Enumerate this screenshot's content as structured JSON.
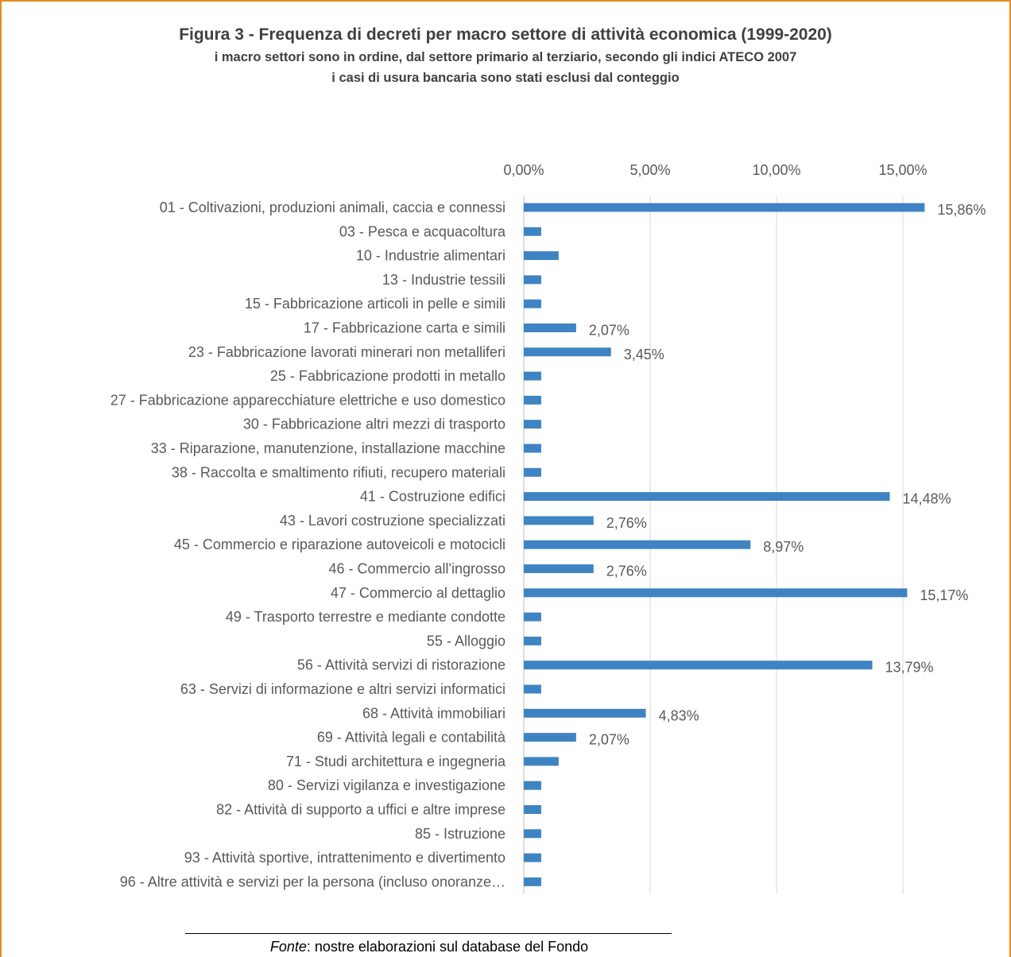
{
  "figure": {
    "title": "Figura 3 - Frequenza di decreti per macro settore di attività economica (1999-2020)",
    "subtitle_lines": [
      "i macro settori sono in ordine, dal settore primario al terziario, secondo gli indici ATECO 2007",
      "i casi di usura bancaria sono stati esclusi dal conteggio"
    ],
    "source_prefix": "Fonte",
    "source_text": ": nostre elaborazioni sul database del Fondo"
  },
  "colors": {
    "bar": "#3f84c2",
    "frame": "#e58a1f",
    "grid": "#d9d9d9",
    "axis": "#bfbfbf"
  },
  "chart_data": {
    "type": "bar",
    "orientation": "horizontal",
    "title": "Figura 3 - Frequenza di decreti per macro settore di attività economica (1999-2020)",
    "xaxis_position": "top",
    "xlim": [
      0,
      15
    ],
    "xticks": [
      "0,00%",
      "5,00%",
      "10,00%",
      "15,00%"
    ],
    "xtick_values": [
      0,
      5,
      10,
      15
    ],
    "grid": "vertical",
    "legend": "none",
    "categories": [
      "01 - Coltivazioni, produzioni animali, caccia e connessi",
      "03 - Pesca e acquacoltura",
      "10 - Industrie alimentari",
      "13 - Industrie tessili",
      "15 - Fabbricazione articoli in pelle e simili",
      "17 - Fabbricazione carta e simili",
      "23 - Fabbricazione lavorati minerari non metalliferi",
      "25 - Fabbricazione prodotti in metallo",
      "27 - Fabbricazione apparecchiature elettriche e uso domestico",
      "30 - Fabbricazione altri mezzi di trasporto",
      "33 - Riparazione, manutenzione, installazione macchine",
      "38 - Raccolta e smaltimento rifiuti, recupero materiali",
      "41 - Costruzione edifici",
      "43 - Lavori costruzione specializzati",
      "45 - Commercio e riparazione autoveicoli e motocicli",
      "46 - Commercio all'ingrosso",
      "47 - Commercio al dettaglio",
      "49 - Trasporto terrestre e mediante condotte",
      "55 - Alloggio",
      "56 - Attività servizi di ristorazione",
      "63 - Servizi di informazione e altri servizi informatici",
      "68 - Attività immobiliari",
      "69 - Attività legali e contabilità",
      "71 - Studi architettura e ingegneria",
      "80 - Servizi vigilanza e investigazione",
      "82 - Attività di supporto a uffici e altre imprese",
      "85 - Istruzione",
      "93 - Attività sportive, intrattenimento e divertimento",
      "96 - Altre attività e servizi per la persona (incluso onoranze…"
    ],
    "values": [
      15.86,
      0.69,
      1.38,
      0.69,
      0.69,
      2.07,
      3.45,
      0.69,
      0.69,
      0.69,
      0.69,
      0.69,
      14.48,
      2.76,
      8.97,
      2.76,
      15.17,
      0.69,
      0.69,
      13.79,
      0.69,
      4.83,
      2.07,
      1.38,
      0.69,
      0.69,
      0.69,
      0.69,
      0.69
    ],
    "data_labels": [
      "15,86%",
      "",
      "",
      "",
      "",
      "2,07%",
      "3,45%",
      "",
      "",
      "",
      "",
      "",
      "14,48%",
      "2,76%",
      "8,97%",
      "2,76%",
      "15,17%",
      "",
      "",
      "13,79%",
      "",
      "4,83%",
      "2,07%",
      "",
      "",
      "",
      "",
      "",
      ""
    ]
  }
}
